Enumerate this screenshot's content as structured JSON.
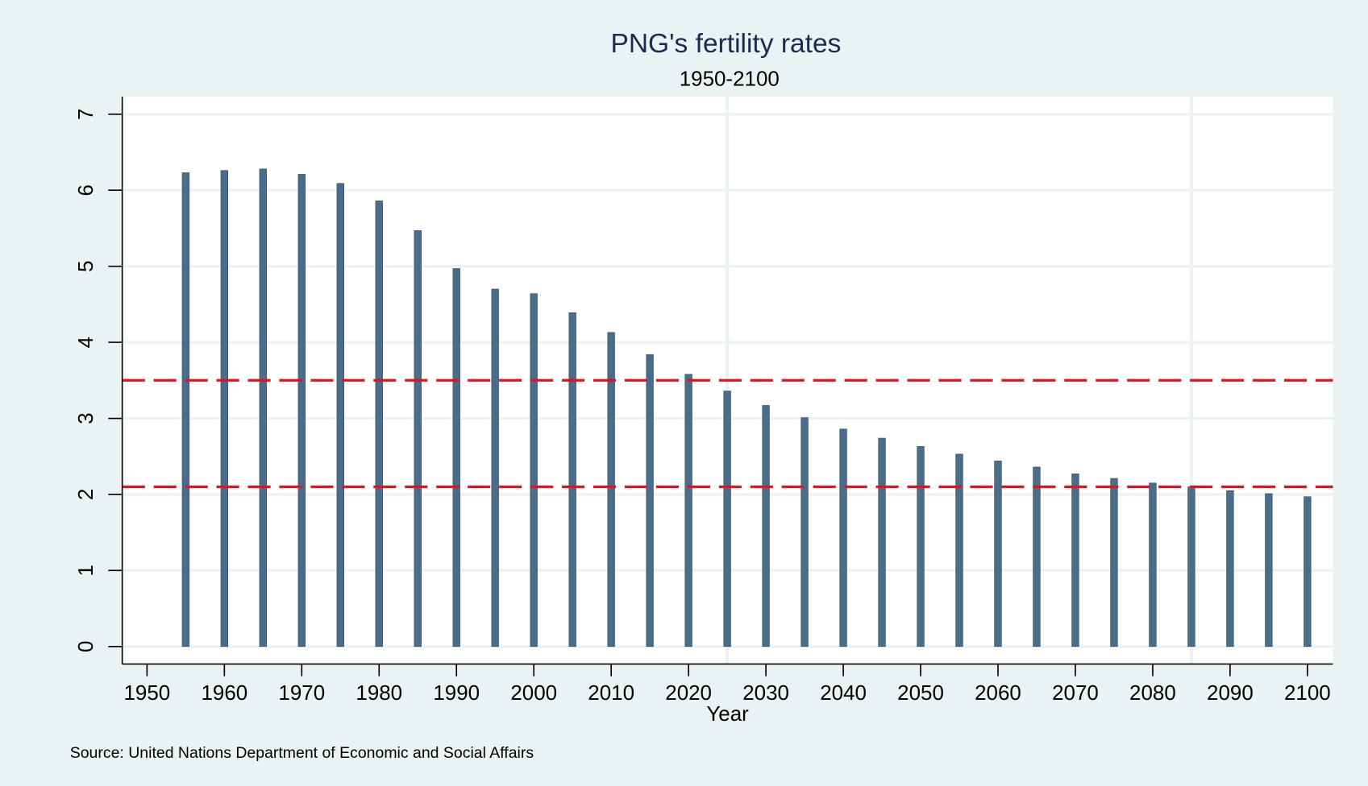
{
  "chart_data": {
    "type": "bar",
    "title": "PNG's fertility rates",
    "subtitle": "1950-2100",
    "x_label": "Year",
    "source": "Source: United Nations Department of Economic and Social Affairs",
    "x": [
      1955,
      1960,
      1965,
      1970,
      1975,
      1980,
      1985,
      1990,
      1995,
      2000,
      2005,
      2010,
      2015,
      2020,
      2025,
      2030,
      2035,
      2040,
      2045,
      2050,
      2055,
      2060,
      2065,
      2070,
      2075,
      2080,
      2085,
      2090,
      2095,
      2100
    ],
    "values": [
      6.23,
      6.26,
      6.28,
      6.21,
      6.09,
      5.86,
      5.47,
      4.97,
      4.7,
      4.64,
      4.39,
      4.13,
      3.84,
      3.58,
      3.36,
      3.17,
      3.01,
      2.86,
      2.74,
      2.63,
      2.53,
      2.44,
      2.36,
      2.27,
      2.21,
      2.15,
      2.1,
      2.05,
      2.01,
      1.97
    ],
    "color": "#4a6d8c",
    "xlim": [
      1946.8,
      2103.3
    ],
    "xticks": [
      1950,
      1960,
      1970,
      1980,
      1990,
      2000,
      2010,
      2020,
      2030,
      2040,
      2050,
      2060,
      2070,
      2080,
      2090,
      2100
    ],
    "ylim": [
      -0.23,
      7.23
    ],
    "yticks": [
      0,
      1,
      2,
      3,
      4,
      5,
      6,
      7
    ],
    "grid": true,
    "reference_lines": [
      {
        "value": 3.5,
        "color": "#e8101a"
      },
      {
        "value": 2.1,
        "color": "#e8101a"
      }
    ],
    "vertical_lines": [
      2025,
      2085
    ]
  }
}
